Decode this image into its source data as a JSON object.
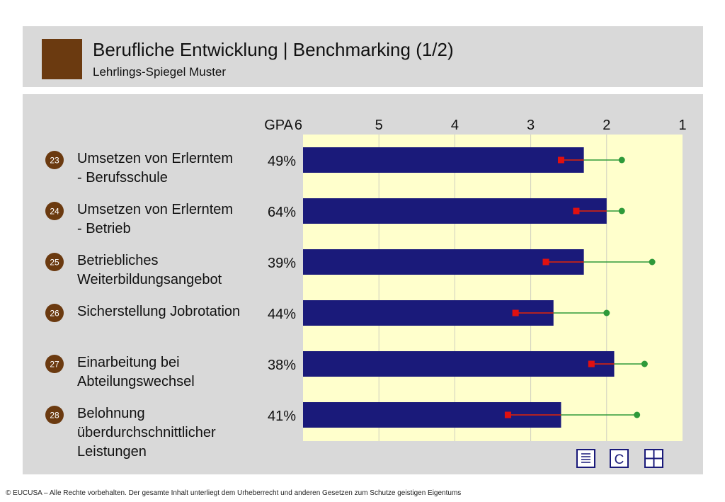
{
  "header": {
    "title": "Berufliche Entwicklung  | Benchmarking (1/2)",
    "subtitle": "Lehrlings-Spiegel Muster",
    "logo_color": "#6b3a10"
  },
  "chart_data": {
    "type": "bar",
    "axis_label": "GPA",
    "ticks": [
      "6",
      "5",
      "4",
      "3",
      "2",
      "1"
    ],
    "xlim": [
      6,
      1
    ],
    "grid": true,
    "items": [
      {
        "number": "23",
        "label_lines": [
          "Umsetzen von Erlerntem",
          "- Berufsschule"
        ],
        "percent": "49%",
        "bar": 2.3,
        "red": 2.6,
        "green": 1.8
      },
      {
        "number": "24",
        "label_lines": [
          "Umsetzen von Erlerntem",
          "- Betrieb"
        ],
        "percent": "64%",
        "bar": 2.0,
        "red": 2.4,
        "green": 1.8
      },
      {
        "number": "25",
        "label_lines": [
          "Betriebliches",
          "Weiterbildungsangebot"
        ],
        "percent": "39%",
        "bar": 2.3,
        "red": 2.8,
        "green": 1.4
      },
      {
        "number": "26",
        "label_lines": [
          "Sicherstellung Jobrotation"
        ],
        "percent": "44%",
        "bar": 2.7,
        "red": 3.2,
        "green": 2.0
      },
      {
        "number": "27",
        "label_lines": [
          "Einarbeitung bei",
          "Abteilungswechsel"
        ],
        "percent": "38%",
        "bar": 1.9,
        "red": 2.2,
        "green": 1.5
      },
      {
        "number": "28",
        "label_lines": [
          "Belohnung",
          "überdurchschnittlicher",
          "Leistungen"
        ],
        "percent": "41%",
        "bar": 2.6,
        "red": 3.3,
        "green": 1.6
      }
    ],
    "colors": {
      "bar": "#1a1a7a",
      "red": "#e01010",
      "green": "#2e9a3a",
      "plot_bg": "#ffffcc",
      "badge": "#6b3a10"
    }
  },
  "toolbar": {
    "icons": [
      "list-icon",
      "c-icon",
      "grid-icon"
    ],
    "c_label": "C"
  },
  "footer": {
    "text": "© EUCUSA – Alle Rechte vorbehalten. Der gesamte Inhalt unterliegt dem Urheberrecht und anderen Gesetzen zum Schutze geistigen Eigentums"
  }
}
